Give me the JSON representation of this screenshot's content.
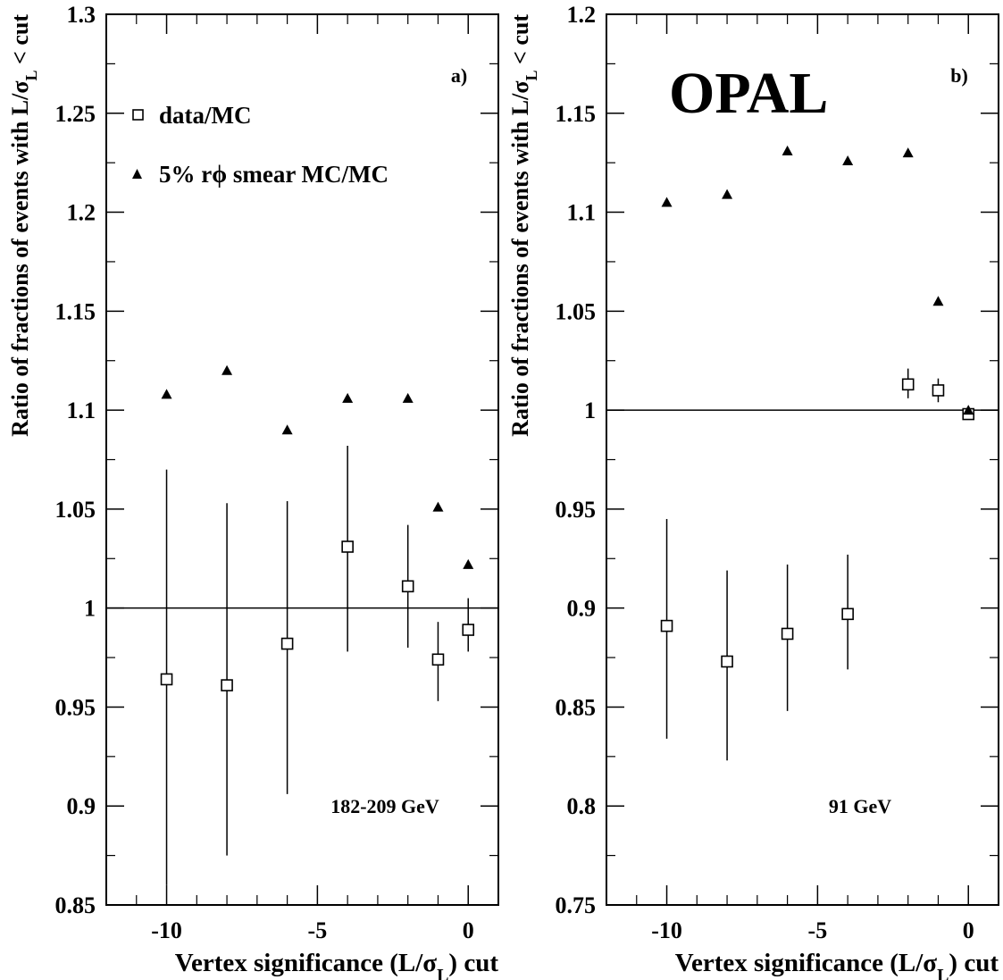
{
  "chart_data": [
    {
      "type": "scatter",
      "panel_label": "a)",
      "energy_label": "182-209 GeV",
      "xlabel": "Vertex significance (L/σL) cut",
      "ylabel": "Ratio of fractions of events with L/σL < cut",
      "xlim": [
        -12,
        1
      ],
      "ylim": [
        0.85,
        1.3
      ],
      "xticks": [
        -10,
        -5,
        0
      ],
      "xtick_labels": [
        "-10",
        "-5",
        "0"
      ],
      "yticks": [
        0.85,
        0.9,
        0.95,
        1.0,
        1.05,
        1.1,
        1.15,
        1.2,
        1.25,
        1.3
      ],
      "ytick_labels": [
        "0.85",
        "0.9",
        "0.95",
        "1",
        "1.05",
        "1.1",
        "1.15",
        "1.2",
        "1.25",
        "1.3"
      ],
      "reference_line": 1.0,
      "legend": [
        {
          "marker": "open-square",
          "label": "data/MC"
        },
        {
          "marker": "filled-triangle",
          "label": "5% rϕ smear MC/MC"
        }
      ],
      "series": [
        {
          "name": "data/MC",
          "marker": "open-square",
          "x": [
            -10,
            -8,
            -6,
            -4,
            -2,
            -1,
            0
          ],
          "y": [
            0.964,
            0.961,
            0.982,
            1.031,
            1.011,
            0.974,
            0.989
          ],
          "yerr_low": [
            0.86,
            0.875,
            0.906,
            0.978,
            0.98,
            0.953,
            0.978
          ],
          "yerr_high": [
            1.07,
            1.053,
            1.054,
            1.082,
            1.042,
            0.993,
            1.005
          ]
        },
        {
          "name": "5% rϕ smear MC/MC",
          "marker": "filled-triangle",
          "x": [
            -10,
            -8,
            -6,
            -4,
            -2,
            -1,
            0
          ],
          "y": [
            1.108,
            1.12,
            1.09,
            1.106,
            1.106,
            1.051,
            1.022
          ]
        }
      ]
    },
    {
      "type": "scatter",
      "panel_label": "b)",
      "energy_label": "91 GeV",
      "experiment_label": "OPAL",
      "xlabel": "Vertex significance (L/σL) cut",
      "ylabel": "Ratio of fractions of events with L/σL < cut",
      "xlim": [
        -12,
        1
      ],
      "ylim": [
        0.75,
        1.2
      ],
      "xticks": [
        -10,
        -5,
        0
      ],
      "xtick_labels": [
        "-10",
        "-5",
        "0"
      ],
      "yticks": [
        0.75,
        0.8,
        0.85,
        0.9,
        0.95,
        1.0,
        1.05,
        1.1,
        1.15,
        1.2
      ],
      "ytick_labels": [
        "0.75",
        "0.8",
        "0.85",
        "0.9",
        "0.95",
        "1",
        "1.05",
        "1.1",
        "1.15",
        "1.2"
      ],
      "reference_line": 1.0,
      "series": [
        {
          "name": "data/MC",
          "marker": "open-square",
          "x": [
            -10,
            -8,
            -6,
            -4,
            -2,
            -1,
            0
          ],
          "y": [
            0.891,
            0.873,
            0.887,
            0.897,
            1.013,
            1.01,
            0.998
          ],
          "yerr_low": [
            0.834,
            0.823,
            0.848,
            0.869,
            1.006,
            1.004,
            0.996
          ],
          "yerr_high": [
            0.945,
            0.919,
            0.922,
            0.927,
            1.021,
            1.016,
            1.001
          ]
        },
        {
          "name": "5% rϕ smear MC/MC",
          "marker": "filled-triangle",
          "x": [
            -10,
            -8,
            -6,
            -4,
            -2,
            -1,
            0
          ],
          "y": [
            1.105,
            1.109,
            1.131,
            1.126,
            1.13,
            1.055,
            1.0
          ]
        }
      ]
    }
  ]
}
